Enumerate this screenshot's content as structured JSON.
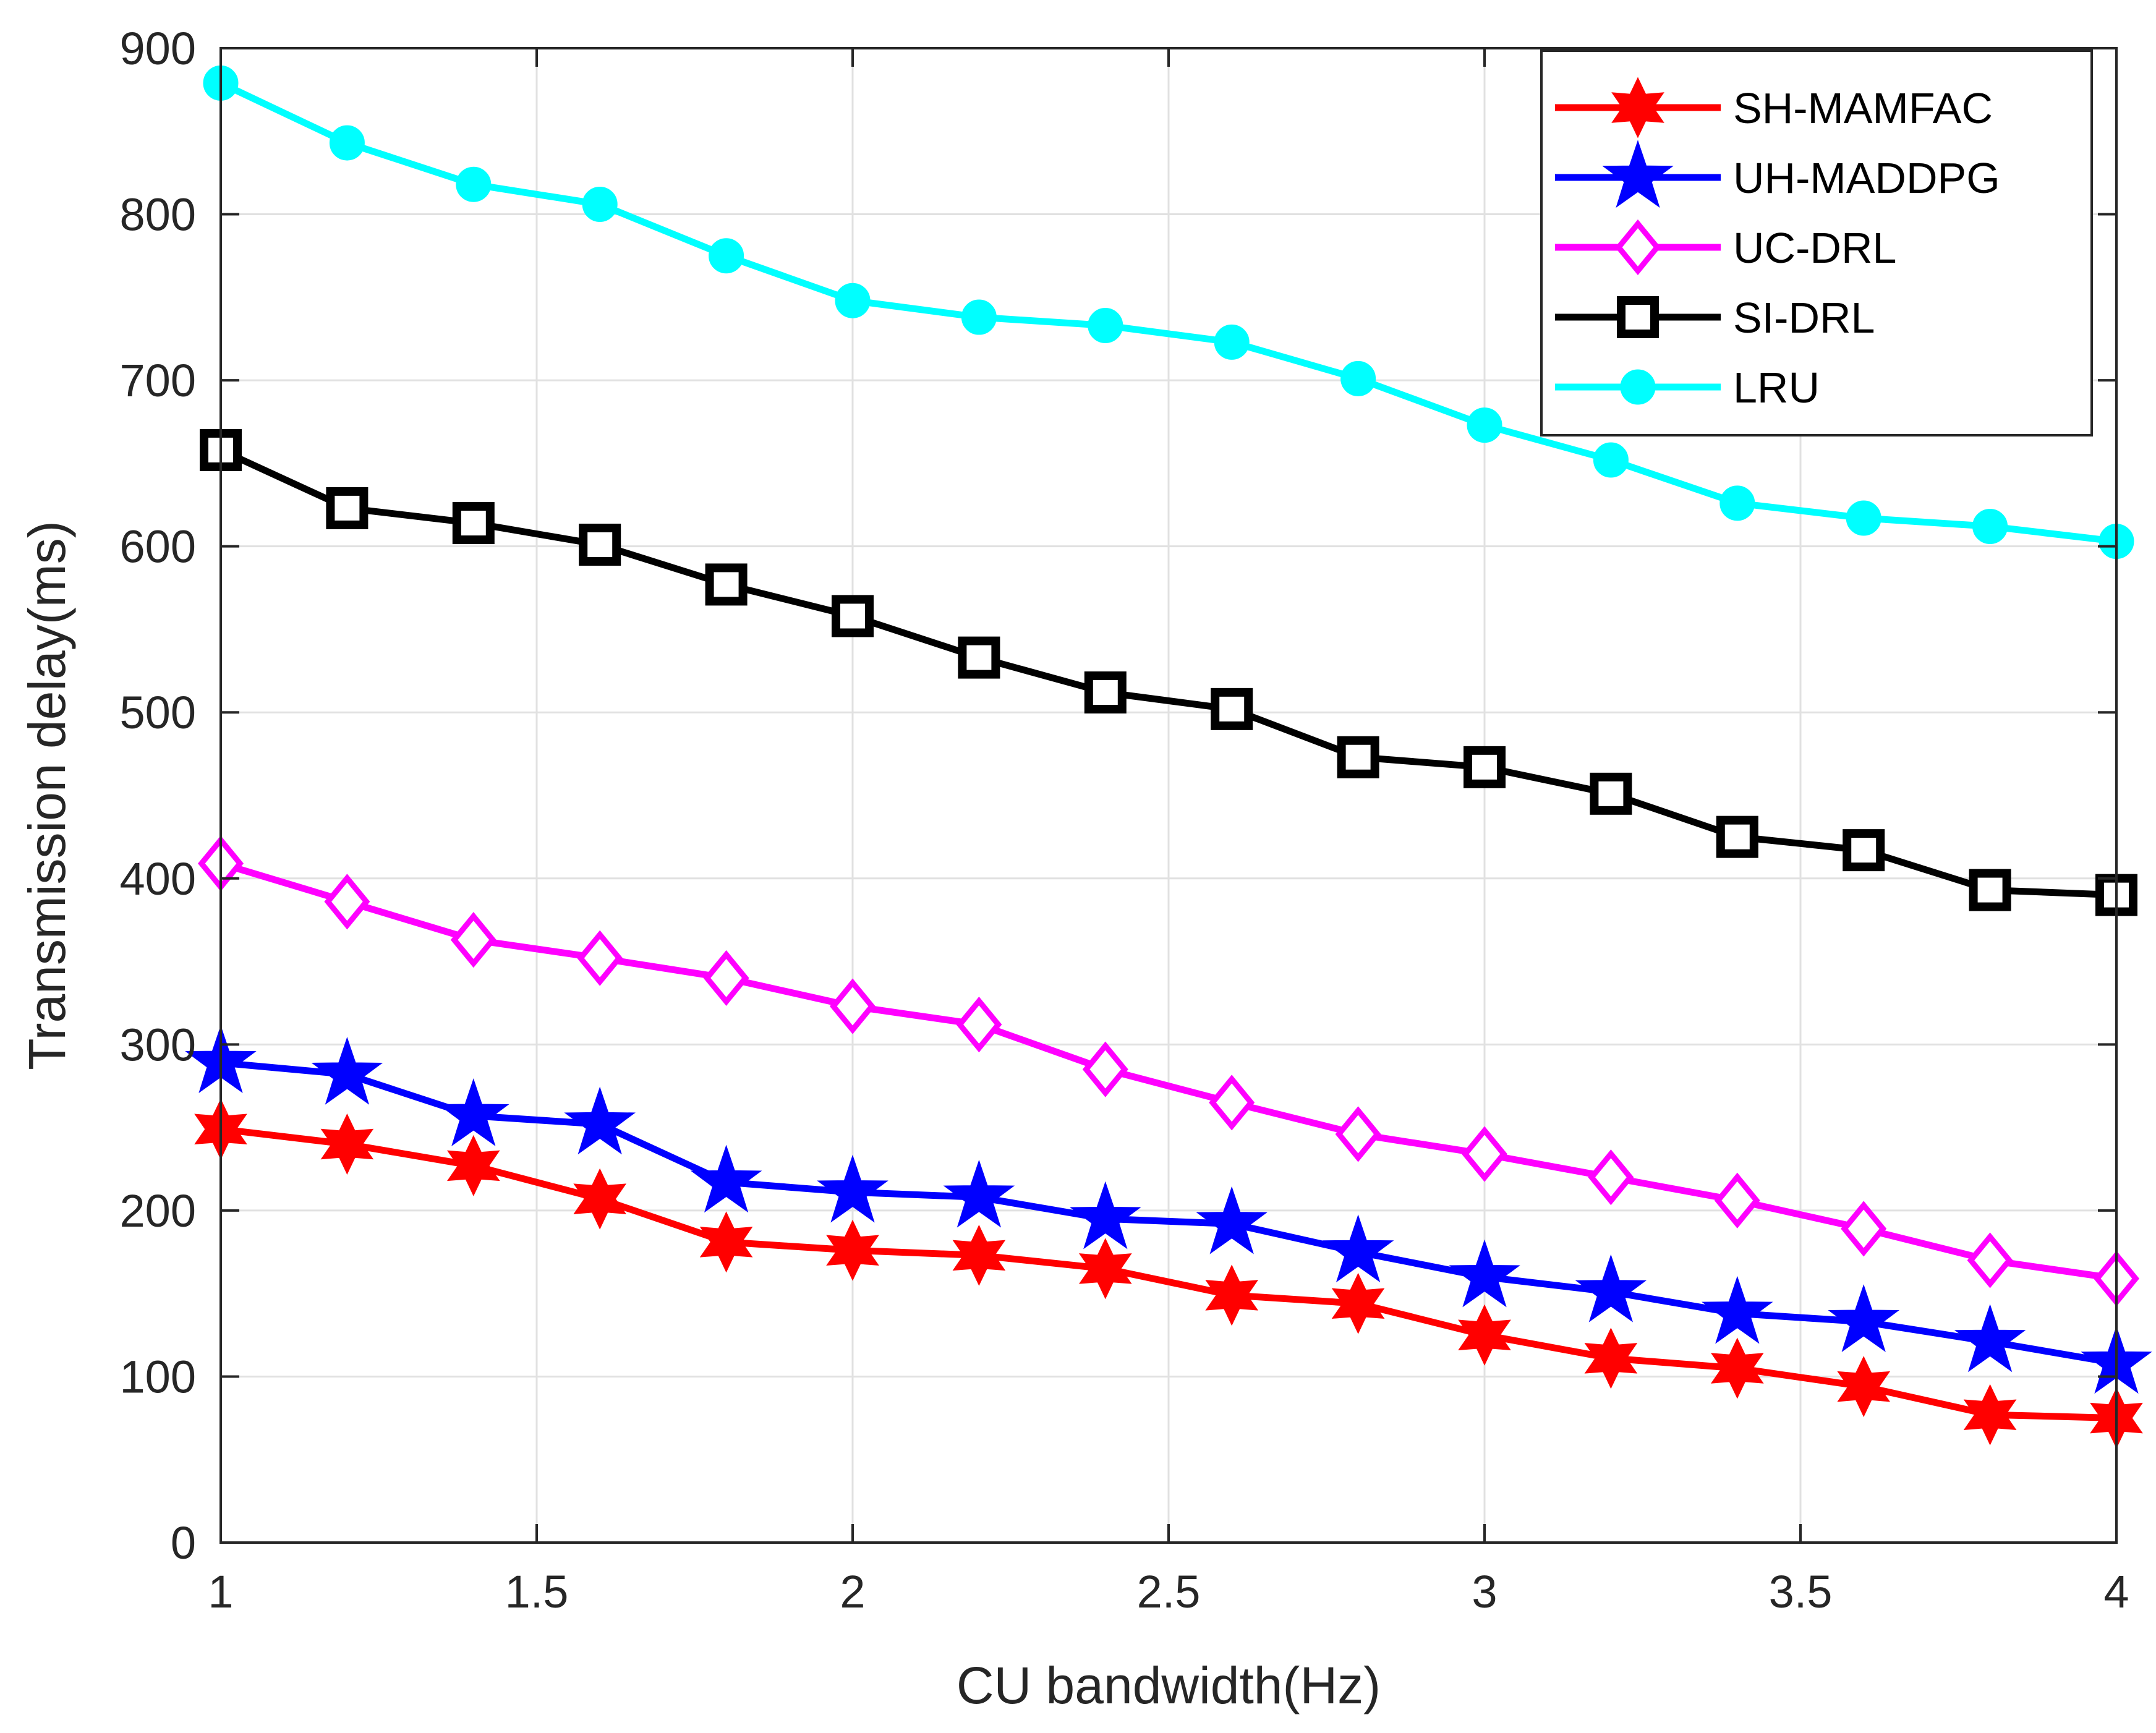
{
  "chart_data": {
    "type": "line",
    "title": "",
    "xlabel": "CU bandwidth(Hz)",
    "ylabel": "Transmission delay(ms)",
    "xlim": [
      1,
      4
    ],
    "ylim": [
      0,
      900
    ],
    "grid": true,
    "legend_position": "top-right",
    "xticks": [
      1,
      1.5,
      2,
      2.5,
      3,
      3.5,
      4
    ],
    "xtick_labels": [
      "1",
      "1.5",
      "2",
      "2.5",
      "3",
      "3.5",
      "4"
    ],
    "yticks": [
      0,
      100,
      200,
      300,
      400,
      500,
      600,
      700,
      800,
      900
    ],
    "ytick_labels": [
      "0",
      "100",
      "200",
      "300",
      "400",
      "500",
      "600",
      "700",
      "800",
      "900"
    ],
    "x": [
      1.0,
      1.2,
      1.4,
      1.6,
      1.8,
      2.0,
      2.2,
      2.4,
      2.6,
      2.8,
      3.0,
      3.2,
      3.4,
      3.6,
      3.8,
      4.0
    ],
    "series": [
      {
        "name": "SH-MAMFAC",
        "color": "#ff0000",
        "marker": "hexagram",
        "values": [
          249,
          240,
          227,
          207,
          181,
          176,
          173,
          165,
          149,
          144,
          125,
          111,
          105,
          94,
          77,
          75
        ]
      },
      {
        "name": "UH-MADDPG",
        "color": "#0000ff",
        "marker": "pentagram",
        "values": [
          289,
          282,
          257,
          252,
          217,
          211,
          208,
          195,
          192,
          175,
          160,
          151,
          138,
          133,
          121,
          108
        ]
      },
      {
        "name": "UC-DRL",
        "color": "#ff00ff",
        "marker": "diamond",
        "values": [
          409,
          386,
          363,
          352,
          340,
          323,
          312,
          285,
          265,
          246,
          234,
          220,
          206,
          189,
          170,
          159
        ]
      },
      {
        "name": "SI-DRL",
        "color": "#000000",
        "marker": "square",
        "values": [
          658,
          623,
          614,
          601,
          577,
          558,
          533,
          512,
          502,
          473,
          467,
          451,
          425,
          417,
          393,
          390
        ]
      },
      {
        "name": "LRU",
        "color": "#00ffff",
        "marker": "circle",
        "values": [
          879,
          843,
          818,
          806,
          775,
          748,
          738,
          733,
          723,
          701,
          673,
          652,
          626,
          617,
          612,
          603
        ]
      }
    ]
  }
}
